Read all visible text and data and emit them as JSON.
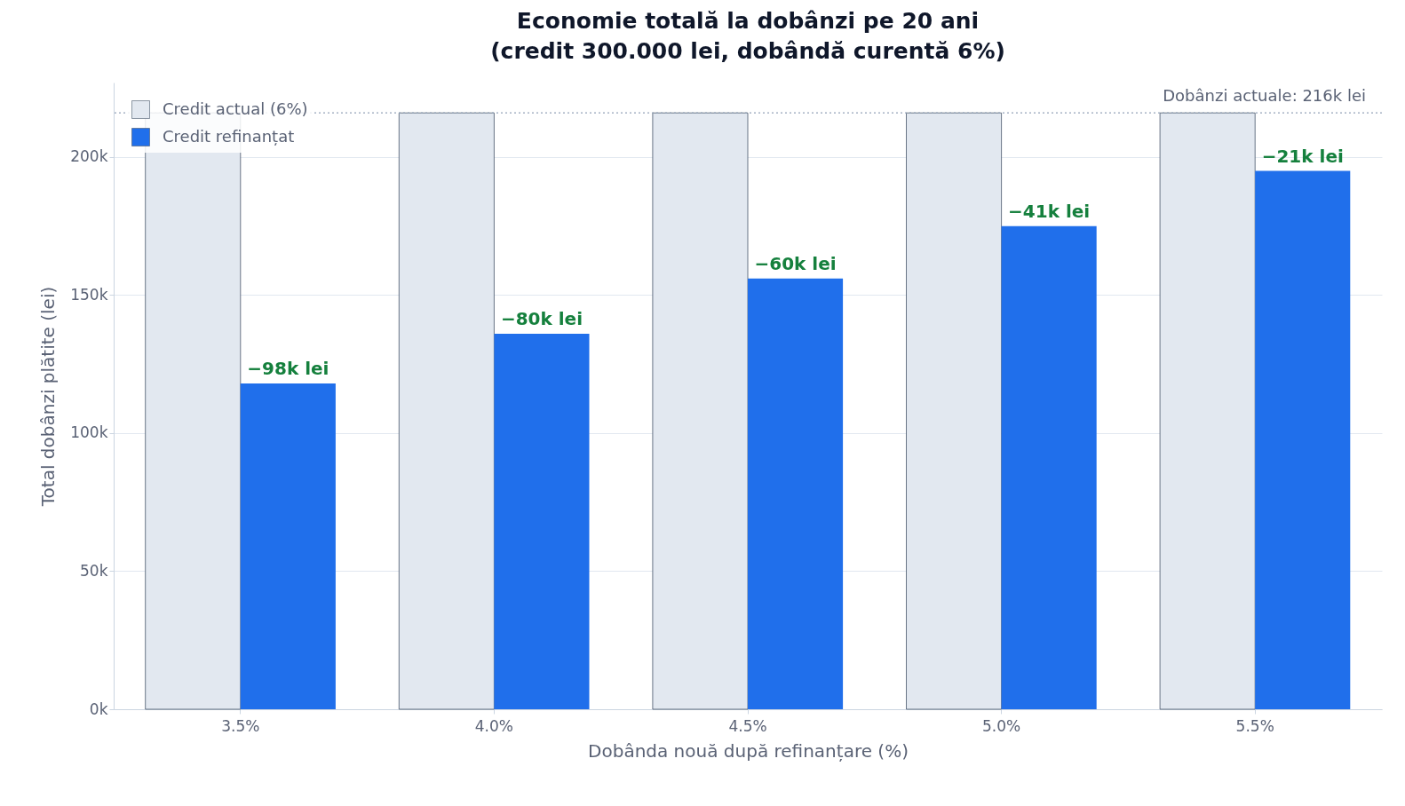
{
  "chart_data": {
    "type": "bar",
    "title": "Economie totală la dobânzi pe 20 ani\n(credit 300.000 lei, dobândă curentă 6%)",
    "xlabel": "Dobânda nouă după refinanțare (%)",
    "ylabel": "Total dobânzi plătite (lei)",
    "categories": [
      "3.5%",
      "4.0%",
      "4.5%",
      "5.0%",
      "5.5%"
    ],
    "series": [
      {
        "name": "Credit actual (6%)",
        "color": "#e2e8f0",
        "values": [
          216,
          216,
          216,
          216,
          216
        ]
      },
      {
        "name": "Credit refinanțat",
        "color": "#206feb",
        "values": [
          118,
          136,
          156,
          175,
          195
        ]
      }
    ],
    "annotations": [
      {
        "text": "−98k lei",
        "x": "3.5%",
        "y": 118
      },
      {
        "text": "−80k lei",
        "x": "4.0%",
        "y": 136
      },
      {
        "text": "−60k lei",
        "x": "4.5%",
        "y": 156
      },
      {
        "text": "−41k lei",
        "x": "5.0%",
        "y": 175
      },
      {
        "text": "−21k lei",
        "x": "5.5%",
        "y": 195
      }
    ],
    "ylim": [
      0,
      227
    ],
    "yticks": [
      {
        "value": 0,
        "label": "0k"
      },
      {
        "value": 50,
        "label": "50k"
      },
      {
        "value": 100,
        "label": "100k"
      },
      {
        "value": 150,
        "label": "150k"
      },
      {
        "value": 200,
        "label": "200k"
      }
    ],
    "ref_lines": [
      {
        "axis": "y",
        "value": 216,
        "label": "Dobânzi actuale: 216k lei",
        "color": "#94a3b8",
        "line_style": "dotted"
      }
    ],
    "grid": "y",
    "legend": "top left"
  }
}
